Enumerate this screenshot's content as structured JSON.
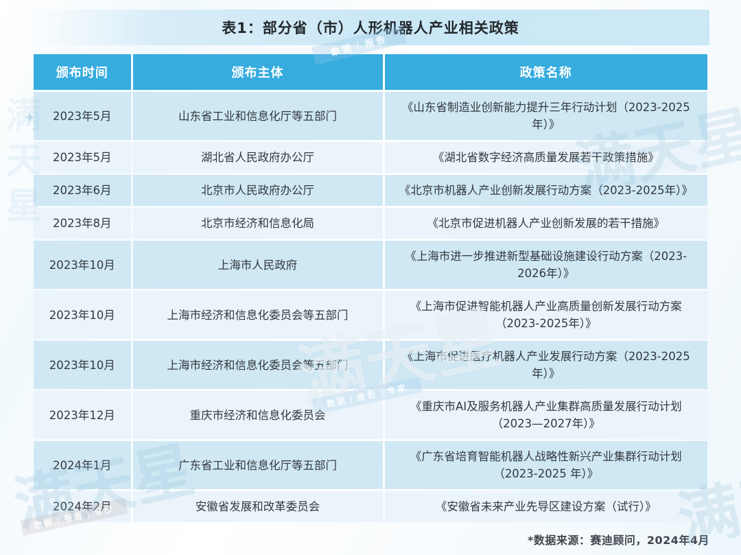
{
  "title": "表1：部分省（市）人形机器人产业相关政策",
  "table": {
    "columns": [
      "颁布时间",
      "颁布主体",
      "政策名称"
    ],
    "rows": [
      {
        "time": "2023年5月",
        "issuer": "山东省工业和信息化厅等五部门",
        "policy": "《山东省制造业创新能力提升三年行动计划（2023-2025年）》"
      },
      {
        "time": "2023年5月",
        "issuer": "湖北省人民政府办公厅",
        "policy": "《湖北省数字经济高质量发展若干政策措施》"
      },
      {
        "time": "2023年6月",
        "issuer": "北京市人民政府办公厅",
        "policy": "《北京市机器人产业创新发展行动方案（2023-2025年）》"
      },
      {
        "time": "2023年8月",
        "issuer": "北京市经济和信息化局",
        "policy": "《北京市促进机器人产业创新发展的若干措施》"
      },
      {
        "time": "2023年10月",
        "issuer": "上海市人民政府",
        "policy": "《上海市进一步推进新型基础设施建设行动方案（2023-2026年）》"
      },
      {
        "time": "2023年10月",
        "issuer": "上海市经济和信息化委员会等五部门",
        "policy": "《上海市促进智能机器人产业高质量创新发展行动方案（2023-2025年）》"
      },
      {
        "time": "2023年10月",
        "issuer": "上海市经济和信息化委员会等五部门",
        "policy": "《上海市促进医疗机器人产业发展行动方案（2023-2025年）》"
      },
      {
        "time": "2023年12月",
        "issuer": "重庆市经济和信息化委员会",
        "policy": "《重庆市AI及服务机器人产业集群高质量发展行动计划（2023—2027年）》"
      },
      {
        "time": "2024年1月",
        "issuer": "广东省工业和信息化厅等五部门",
        "policy": "《广东省培育智能机器人战略性新兴产业集群行动计划（2023-2025 年）》"
      },
      {
        "time": "2024年2月",
        "issuer": "安徽省发展和改革委员会",
        "policy": "《安徽省未来产业先导区建设方案（试行）》"
      }
    ]
  },
  "footer": {
    "source": "*数据来源：赛迪顾问，2024年4月"
  },
  "watermarks": {
    "brand": "满天星",
    "ribbon_top": "数据｜报告",
    "ribbon_sub": "数据｜报告｜专家",
    "spark": "✦"
  },
  "colors": {
    "header_blue": "#36ACDF",
    "row_dark": "#CFE8F4",
    "row_light": "#EAF4FA",
    "title_band": "#C9E7F5",
    "text": "#33383E"
  }
}
